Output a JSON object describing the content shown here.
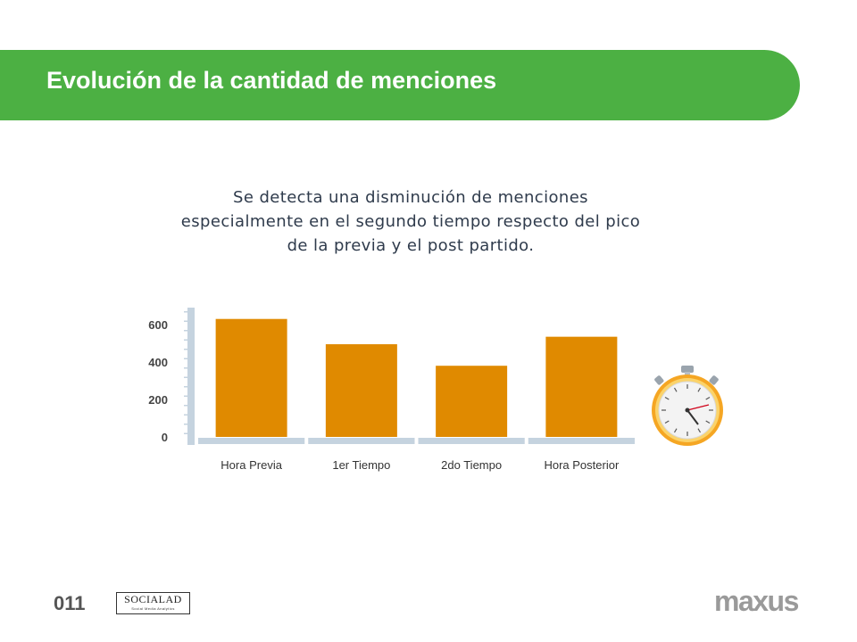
{
  "header": {
    "title": "Evolución de la cantidad de menciones"
  },
  "subtitle": {
    "line1": "Se detecta una disminución de menciones",
    "line2": "especialmente en el segundo tiempo respecto del pico",
    "line3": "de la previa y el post partido."
  },
  "chart_data": {
    "type": "bar",
    "categories": [
      "Hora Previa",
      "1er Tiempo",
      "2do Tiempo",
      "Hora Posterior"
    ],
    "values": [
      630,
      495,
      380,
      535
    ],
    "title": "",
    "xlabel": "",
    "ylabel": "",
    "ylim": [
      0,
      700
    ],
    "yticks": [
      0,
      200,
      400,
      600
    ],
    "grid": false,
    "bar_color": "#e08a00"
  },
  "footer": {
    "page_number": "011",
    "socialad_name": "SOCIALAD",
    "socialad_tagline": "Social Media Analytics",
    "brand": "maxus"
  },
  "icons": {
    "stopwatch": "stopwatch-icon"
  },
  "colors": {
    "banner": "#4cb043",
    "bar": "#e08a00",
    "axis": "#c5d3df"
  }
}
